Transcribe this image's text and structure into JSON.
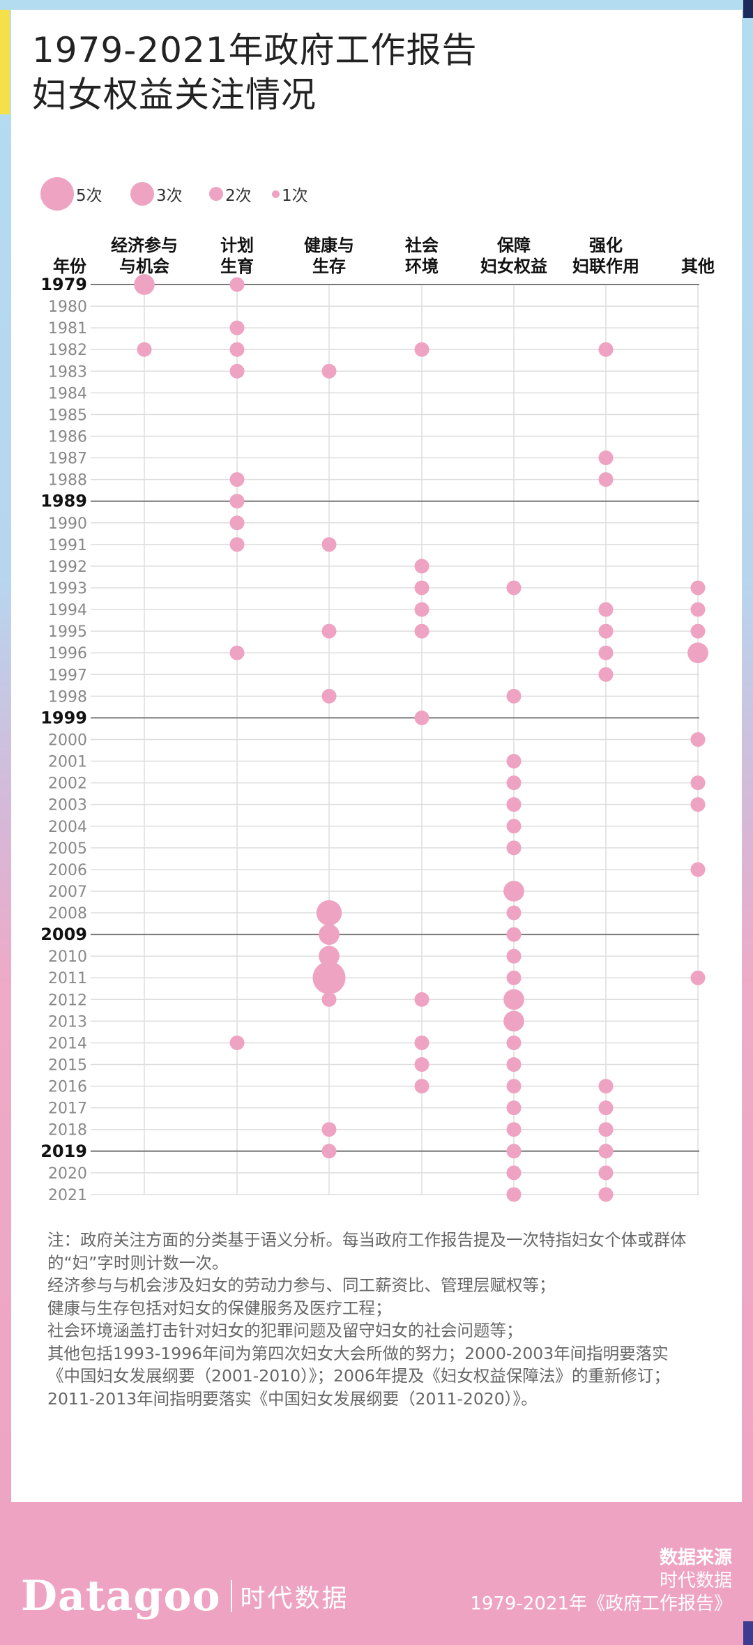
{
  "title": {
    "line1": "1979-2021年政府工作报告",
    "line2": "妇女权益关注情况"
  },
  "legend": [
    {
      "count": 5,
      "label": "5次"
    },
    {
      "count": 3,
      "label": "3次"
    },
    {
      "count": 2,
      "label": "2次"
    },
    {
      "count": 1,
      "label": "1次"
    }
  ],
  "colors": {
    "dot": "#eea3c2",
    "grid": "#dddddd",
    "major_line": "#777777",
    "year_major": "#111111",
    "year_minor": "#888888",
    "header_text": "#111111"
  },
  "chart_data": {
    "type": "scatter",
    "title": "1979-2021年政府工作报告 妇女权益关注情况",
    "row_header": "年份",
    "categories": [
      {
        "line1": "经济参与",
        "line2": "与机会"
      },
      {
        "line1": "计划",
        "line2": "生育"
      },
      {
        "line1": "健康与",
        "line2": "生存"
      },
      {
        "line1": "社会",
        "line2": "环境"
      },
      {
        "line1": "保障",
        "line2": "妇女权益"
      },
      {
        "line1": "强化",
        "line2": "妇联作用"
      },
      {
        "line1": "",
        "line2": "其他"
      }
    ],
    "years": [
      1979,
      1980,
      1981,
      1982,
      1983,
      1984,
      1985,
      1986,
      1987,
      1988,
      1989,
      1990,
      1991,
      1992,
      1993,
      1994,
      1995,
      1996,
      1997,
      1998,
      1999,
      2000,
      2001,
      2002,
      2003,
      2004,
      2005,
      2006,
      2007,
      2008,
      2009,
      2010,
      2011,
      2012,
      2013,
      2014,
      2015,
      2016,
      2017,
      2018,
      2019,
      2020,
      2021
    ],
    "major_years": [
      1979,
      1989,
      1999,
      2009,
      2019
    ],
    "points": [
      {
        "year": 1979,
        "category": 0,
        "count": 2
      },
      {
        "year": 1979,
        "category": 1,
        "count": 1
      },
      {
        "year": 1981,
        "category": 1,
        "count": 1
      },
      {
        "year": 1982,
        "category": 0,
        "count": 1
      },
      {
        "year": 1982,
        "category": 1,
        "count": 1
      },
      {
        "year": 1982,
        "category": 3,
        "count": 1
      },
      {
        "year": 1982,
        "category": 5,
        "count": 1
      },
      {
        "year": 1983,
        "category": 1,
        "count": 1
      },
      {
        "year": 1983,
        "category": 2,
        "count": 1
      },
      {
        "year": 1987,
        "category": 5,
        "count": 1
      },
      {
        "year": 1988,
        "category": 1,
        "count": 1
      },
      {
        "year": 1988,
        "category": 5,
        "count": 1
      },
      {
        "year": 1989,
        "category": 1,
        "count": 1
      },
      {
        "year": 1990,
        "category": 1,
        "count": 1
      },
      {
        "year": 1991,
        "category": 1,
        "count": 1
      },
      {
        "year": 1991,
        "category": 2,
        "count": 1
      },
      {
        "year": 1992,
        "category": 3,
        "count": 1
      },
      {
        "year": 1993,
        "category": 3,
        "count": 1
      },
      {
        "year": 1993,
        "category": 4,
        "count": 1
      },
      {
        "year": 1993,
        "category": 6,
        "count": 1
      },
      {
        "year": 1994,
        "category": 3,
        "count": 1
      },
      {
        "year": 1994,
        "category": 5,
        "count": 1
      },
      {
        "year": 1994,
        "category": 6,
        "count": 1
      },
      {
        "year": 1995,
        "category": 2,
        "count": 1
      },
      {
        "year": 1995,
        "category": 3,
        "count": 1
      },
      {
        "year": 1995,
        "category": 5,
        "count": 1
      },
      {
        "year": 1995,
        "category": 6,
        "count": 1
      },
      {
        "year": 1996,
        "category": 1,
        "count": 1
      },
      {
        "year": 1996,
        "category": 5,
        "count": 1
      },
      {
        "year": 1996,
        "category": 6,
        "count": 2
      },
      {
        "year": 1997,
        "category": 5,
        "count": 1
      },
      {
        "year": 1998,
        "category": 2,
        "count": 1
      },
      {
        "year": 1998,
        "category": 4,
        "count": 1
      },
      {
        "year": 1999,
        "category": 3,
        "count": 1
      },
      {
        "year": 2000,
        "category": 6,
        "count": 1
      },
      {
        "year": 2001,
        "category": 4,
        "count": 1
      },
      {
        "year": 2002,
        "category": 4,
        "count": 1
      },
      {
        "year": 2002,
        "category": 6,
        "count": 1
      },
      {
        "year": 2003,
        "category": 4,
        "count": 1
      },
      {
        "year": 2003,
        "category": 6,
        "count": 1
      },
      {
        "year": 2004,
        "category": 4,
        "count": 1
      },
      {
        "year": 2005,
        "category": 4,
        "count": 1
      },
      {
        "year": 2006,
        "category": 6,
        "count": 1
      },
      {
        "year": 2007,
        "category": 4,
        "count": 2
      },
      {
        "year": 2008,
        "category": 2,
        "count": 3
      },
      {
        "year": 2008,
        "category": 4,
        "count": 1
      },
      {
        "year": 2009,
        "category": 2,
        "count": 2
      },
      {
        "year": 2009,
        "category": 4,
        "count": 1
      },
      {
        "year": 2010,
        "category": 2,
        "count": 2
      },
      {
        "year": 2010,
        "category": 4,
        "count": 1
      },
      {
        "year": 2011,
        "category": 2,
        "count": 5
      },
      {
        "year": 2011,
        "category": 4,
        "count": 1
      },
      {
        "year": 2011,
        "category": 6,
        "count": 1
      },
      {
        "year": 2012,
        "category": 2,
        "count": 1
      },
      {
        "year": 2012,
        "category": 3,
        "count": 1
      },
      {
        "year": 2012,
        "category": 4,
        "count": 2
      },
      {
        "year": 2013,
        "category": 4,
        "count": 2
      },
      {
        "year": 2014,
        "category": 1,
        "count": 1
      },
      {
        "year": 2014,
        "category": 3,
        "count": 1
      },
      {
        "year": 2014,
        "category": 4,
        "count": 1
      },
      {
        "year": 2015,
        "category": 3,
        "count": 1
      },
      {
        "year": 2015,
        "category": 4,
        "count": 1
      },
      {
        "year": 2016,
        "category": 3,
        "count": 1
      },
      {
        "year": 2016,
        "category": 4,
        "count": 1
      },
      {
        "year": 2016,
        "category": 5,
        "count": 1
      },
      {
        "year": 2017,
        "category": 4,
        "count": 1
      },
      {
        "year": 2017,
        "category": 5,
        "count": 1
      },
      {
        "year": 2018,
        "category": 2,
        "count": 1
      },
      {
        "year": 2018,
        "category": 4,
        "count": 1
      },
      {
        "year": 2018,
        "category": 5,
        "count": 1
      },
      {
        "year": 2019,
        "category": 2,
        "count": 1
      },
      {
        "year": 2019,
        "category": 4,
        "count": 1
      },
      {
        "year": 2019,
        "category": 5,
        "count": 1
      },
      {
        "year": 2020,
        "category": 4,
        "count": 1
      },
      {
        "year": 2020,
        "category": 5,
        "count": 1
      },
      {
        "year": 2021,
        "category": 4,
        "count": 1
      },
      {
        "year": 2021,
        "category": 5,
        "count": 1
      }
    ]
  },
  "notes": [
    "注：政府关注方面的分类基于语义分析。每当政府工作报告提及一次特指妇女个体或群体的“妇”字时则计数一次。",
    "经济参与与机会涉及妇女的劳动力参与、同工薪资比、管理层赋权等；",
    "健康与生存包括对妇女的保健服务及医疗工程；",
    "社会环境涵盖打击针对妇女的犯罪问题及留守妇女的社会问题等；",
    "其他包括1993-1996年间为第四次妇女大会所做的努力；2000-2003年间指明要落实《中国妇女发展纲要（2001-2010）》；2006年提及《妇女权益保障法》的重新修订；2011-2013年间指明要落实《中国妇女发展纲要（2011-2020）》。"
  ],
  "footer": {
    "logo_en": "Datagoo",
    "logo_cn": "时代数据",
    "source_title": "数据来源",
    "source_line1": "时代数据",
    "source_line2": "1979-2021年《政府工作报告》"
  }
}
